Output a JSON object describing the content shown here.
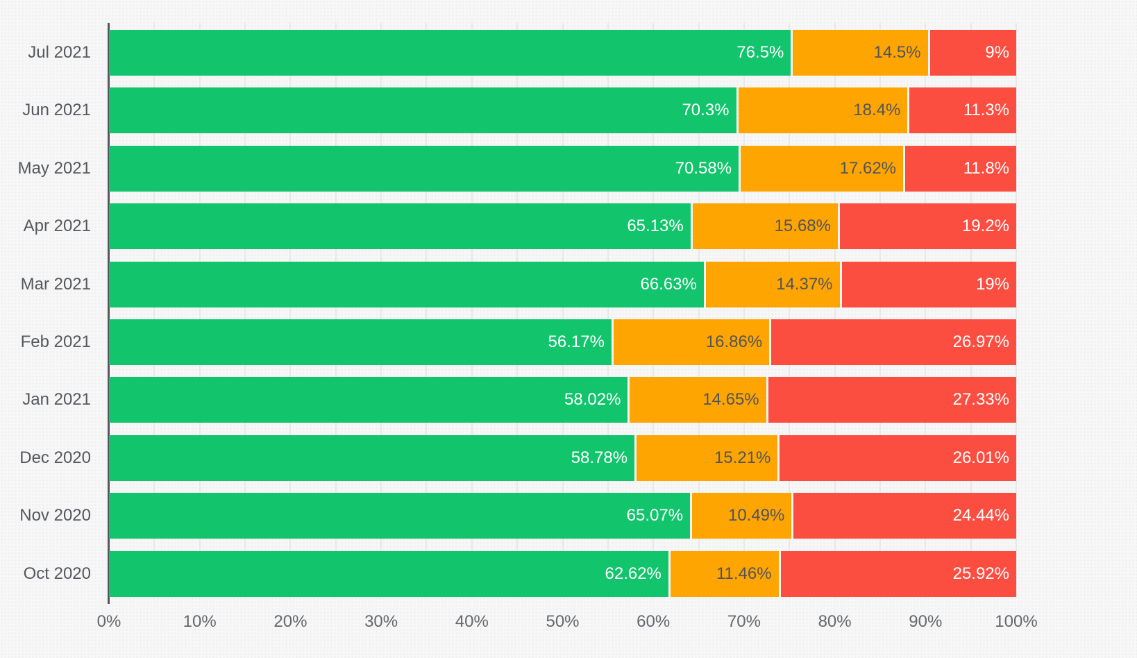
{
  "chart_data": {
    "type": "bar",
    "stacked": true,
    "orientation": "horizontal",
    "title": "",
    "xlabel": "",
    "ylabel": "",
    "xlim": [
      0,
      100
    ],
    "x_tick_labels": [
      "0%",
      "10%",
      "20%",
      "30%",
      "40%",
      "50%",
      "60%",
      "70%",
      "80%",
      "90%",
      "100%"
    ],
    "minor_grid_step_percent": 5,
    "legend": "none",
    "categories": [
      "Jul 2021",
      "Jun 2021",
      "May 2021",
      "Apr 2021",
      "Mar 2021",
      "Feb 2021",
      "Jan 2021",
      "Dec 2020",
      "Nov 2020",
      "Oct 2020"
    ],
    "series": [
      {
        "name": "green",
        "color": "#12c46b",
        "label_color": "#ffffff",
        "values": [
          76.5,
          70.3,
          70.58,
          65.13,
          66.63,
          56.17,
          58.02,
          58.78,
          65.07,
          62.62
        ]
      },
      {
        "name": "amber",
        "color": "#ffa502",
        "label_color": "#50545a",
        "values": [
          14.5,
          18.4,
          17.62,
          15.68,
          14.37,
          16.86,
          14.65,
          15.21,
          10.49,
          11.46
        ]
      },
      {
        "name": "red",
        "color": "#fb4e41",
        "label_color": "#ffffff",
        "values": [
          9,
          11.3,
          11.8,
          19.2,
          19,
          26.97,
          27.33,
          26.01,
          24.44,
          25.92
        ]
      }
    ],
    "value_label_suffix": "%"
  },
  "colors": {
    "background": "#f7f7f7",
    "axis_line": "#53565c",
    "gridline": "#e8e8e8",
    "category_label": "#55585d",
    "tick_label": "#64676c"
  }
}
